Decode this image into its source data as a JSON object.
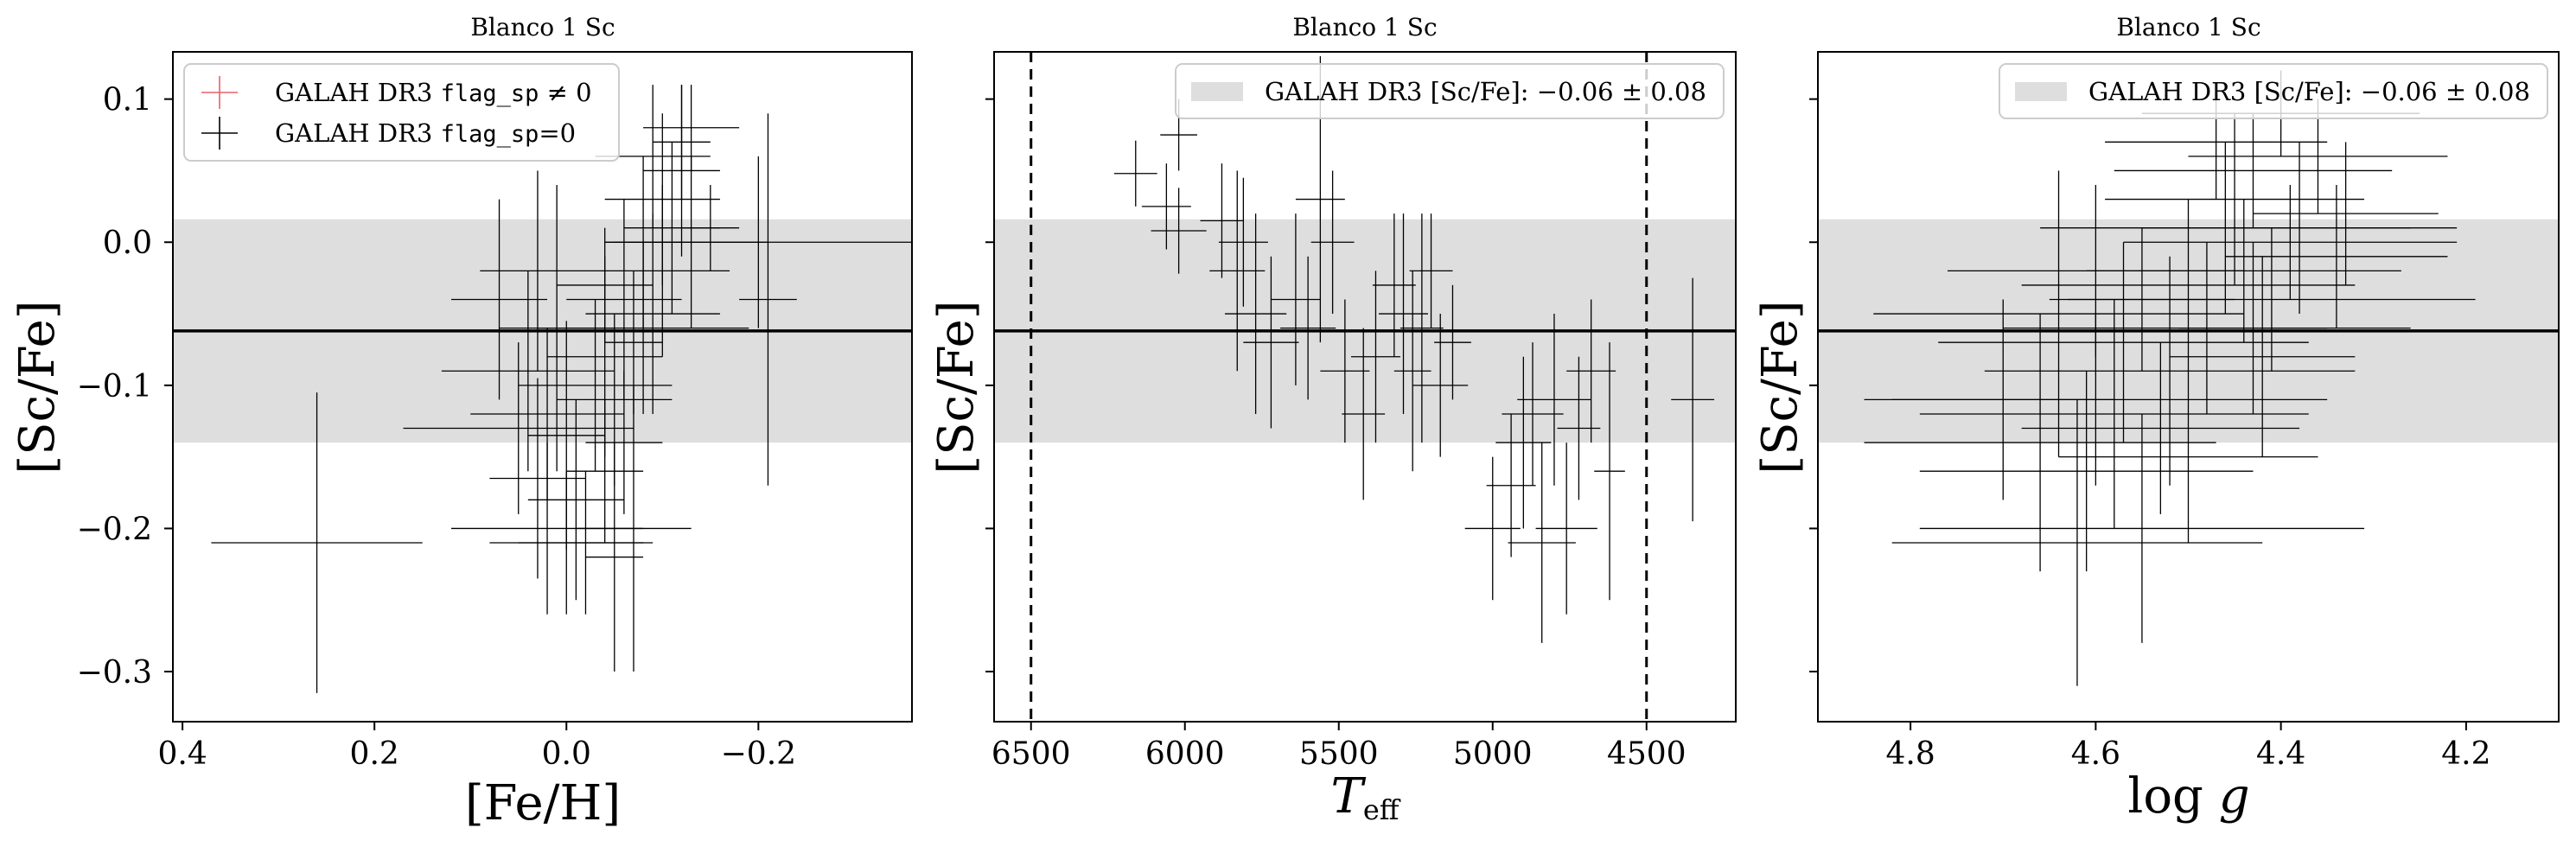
{
  "colors": {
    "band": "#dedede",
    "errorbar": "#000000",
    "flagged": "#e8606a",
    "axes": "#000000"
  },
  "figure": {
    "legend1": {
      "flagged_prefix": "GALAH DR3 ",
      "flagged_code": "flag_sp",
      "flagged_suffix": " ≠ 0",
      "clean_prefix": "GALAH DR3 ",
      "clean_code": "flag_sp",
      "clean_suffix": "=0"
    },
    "band_legend": "GALAH DR3 [Sc/Fe]:  −0.06 ± 0.08"
  },
  "chart_data": [
    {
      "type": "scatter",
      "title": "Blanco 1 Sc",
      "xlabel": "[Fe/H]",
      "ylabel": "[Sc/Fe]",
      "xlim": [
        0.41,
        -0.36
      ],
      "ylim": [
        -0.335,
        0.133
      ],
      "xticks": [
        0.4,
        0.2,
        0.0,
        -0.2
      ],
      "xtick_labels": [
        "0.4",
        "0.2",
        "0.0",
        "−0.2"
      ],
      "yticks": [
        0.1,
        0.0,
        -0.1,
        -0.2,
        -0.3
      ],
      "ytick_labels": [
        "0.1",
        "0.0",
        "−0.1",
        "−0.2",
        "−0.3"
      ],
      "reference": {
        "mean": -0.062,
        "sigma": 0.078
      },
      "legend": "upper left",
      "points": [
        {
          "x": 0.26,
          "y": -0.21,
          "xerr": 0.11,
          "yerr": 0.105
        },
        {
          "x": 0.07,
          "y": -0.04,
          "xerr": 0.05,
          "yerr": 0.07
        },
        {
          "x": 0.03,
          "y": -0.02,
          "xerr": 0.06,
          "yerr": 0.07
        },
        {
          "x": 0.04,
          "y": -0.09,
          "xerr": 0.09,
          "yerr": 0.07
        },
        {
          "x": 0.02,
          "y": -0.12,
          "xerr": 0.08,
          "yerr": 0.06
        },
        {
          "x": 0.05,
          "y": -0.13,
          "xerr": 0.12,
          "yerr": 0.06
        },
        {
          "x": 0.03,
          "y": -0.165,
          "xerr": 0.05,
          "yerr": 0.07
        },
        {
          "x": 0.02,
          "y": -0.2,
          "xerr": 0.1,
          "yerr": 0.06
        },
        {
          "x": 0.0,
          "y": -0.21,
          "xerr": 0.08,
          "yerr": 0.05
        },
        {
          "x": 0.0,
          "y": -0.135,
          "xerr": 0.04,
          "yerr": 0.08
        },
        {
          "x": -0.01,
          "y": -0.18,
          "xerr": 0.05,
          "yerr": 0.07
        },
        {
          "x": -0.02,
          "y": -0.21,
          "xerr": 0.07,
          "yerr": 0.05
        },
        {
          "x": -0.03,
          "y": -0.1,
          "xerr": 0.08,
          "yerr": 0.06
        },
        {
          "x": -0.04,
          "y": -0.16,
          "xerr": 0.04,
          "yerr": 0.05
        },
        {
          "x": -0.04,
          "y": -0.08,
          "xerr": 0.06,
          "yerr": 0.07
        },
        {
          "x": -0.05,
          "y": -0.22,
          "xerr": 0.03,
          "yerr": 0.08
        },
        {
          "x": -0.05,
          "y": -0.11,
          "xerr": 0.06,
          "yerr": 0.06
        },
        {
          "x": -0.06,
          "y": -0.04,
          "xerr": 0.06,
          "yerr": 0.07
        },
        {
          "x": -0.07,
          "y": -0.2,
          "xerr": 0.06,
          "yerr": 0.1
        },
        {
          "x": -0.07,
          "y": -0.07,
          "xerr": 0.03,
          "yerr": 0.05
        },
        {
          "x": -0.08,
          "y": -0.06,
          "xerr": 0.11,
          "yerr": 0.06
        },
        {
          "x": -0.08,
          "y": 0.0,
          "xerr": 0.04,
          "yerr": 0.06
        },
        {
          "x": -0.09,
          "y": -0.05,
          "xerr": 0.07,
          "yerr": 0.07
        },
        {
          "x": -0.09,
          "y": 0.06,
          "xerr": 0.06,
          "yerr": 0.05
        },
        {
          "x": -0.1,
          "y": -0.02,
          "xerr": 0.07,
          "yerr": 0.06
        },
        {
          "x": -0.1,
          "y": 0.03,
          "xerr": 0.06,
          "yerr": 0.06
        },
        {
          "x": -0.11,
          "y": 0.01,
          "xerr": 0.05,
          "yerr": 0.06
        },
        {
          "x": -0.12,
          "y": 0.05,
          "xerr": 0.04,
          "yerr": 0.06
        },
        {
          "x": -0.13,
          "y": 0.08,
          "xerr": 0.05,
          "yerr": 0.03
        },
        {
          "x": -0.13,
          "y": 0.0,
          "xerr": 0.08,
          "yerr": 0.06
        },
        {
          "x": -0.15,
          "y": 0.01,
          "xerr": 0.03,
          "yerr": 0.03
        },
        {
          "x": -0.21,
          "y": -0.04,
          "xerr": 0.03,
          "yerr": 0.13
        },
        {
          "x": -0.2,
          "y": 0.0,
          "xerr": 0.16,
          "yerr": 0.06
        },
        {
          "x": -0.12,
          "y": 0.07,
          "xerr": 0.03,
          "yerr": 0.04
        },
        {
          "x": -0.06,
          "y": -0.14,
          "xerr": 0.04,
          "yerr": 0.05
        },
        {
          "x": 0.01,
          "y": -0.06,
          "xerr": 0.06,
          "yerr": 0.1
        },
        {
          "x": -0.04,
          "y": -0.03,
          "xerr": 0.05,
          "yerr": 0.04
        }
      ]
    },
    {
      "type": "scatter",
      "title": "Blanco 1 Sc",
      "xlabel": "T_eff",
      "ylabel": "[Sc/Fe]",
      "xlim": [
        6620,
        4210
      ],
      "ylim": [
        -0.335,
        0.133
      ],
      "xticks": [
        6500,
        6000,
        5500,
        5000,
        4500
      ],
      "xtick_labels": [
        "6500",
        "6000",
        "5500",
        "5000",
        "4500"
      ],
      "yticks": [
        0.1,
        0.0,
        -0.1,
        -0.2,
        -0.3
      ],
      "vlines": [
        6500,
        4500
      ],
      "reference": {
        "mean": -0.062,
        "sigma": 0.078
      },
      "legend": "upper right",
      "points": [
        {
          "x": 6160,
          "y": 0.048,
          "xerr": 70,
          "yerr": 0.023
        },
        {
          "x": 6020,
          "y": 0.075,
          "xerr": 60,
          "yerr": 0.025
        },
        {
          "x": 6060,
          "y": 0.025,
          "xerr": 80,
          "yerr": 0.03
        },
        {
          "x": 6020,
          "y": 0.008,
          "xerr": 90,
          "yerr": 0.03
        },
        {
          "x": 5880,
          "y": 0.015,
          "xerr": 70,
          "yerr": 0.04
        },
        {
          "x": 5810,
          "y": 0.0,
          "xerr": 80,
          "yerr": 0.045
        },
        {
          "x": 5830,
          "y": -0.02,
          "xerr": 90,
          "yerr": 0.07
        },
        {
          "x": 5770,
          "y": -0.05,
          "xerr": 100,
          "yerr": 0.07
        },
        {
          "x": 5720,
          "y": -0.07,
          "xerr": 90,
          "yerr": 0.06
        },
        {
          "x": 5640,
          "y": -0.04,
          "xerr": 80,
          "yerr": 0.06
        },
        {
          "x": 5600,
          "y": -0.06,
          "xerr": 90,
          "yerr": 0.05
        },
        {
          "x": 5560,
          "y": 0.03,
          "xerr": 80,
          "yerr": 0.1
        },
        {
          "x": 5520,
          "y": 0.0,
          "xerr": 70,
          "yerr": 0.05
        },
        {
          "x": 5480,
          "y": -0.09,
          "xerr": 80,
          "yerr": 0.05
        },
        {
          "x": 5420,
          "y": -0.12,
          "xerr": 70,
          "yerr": 0.06
        },
        {
          "x": 5380,
          "y": -0.08,
          "xerr": 80,
          "yerr": 0.06
        },
        {
          "x": 5320,
          "y": -0.03,
          "xerr": 70,
          "yerr": 0.05
        },
        {
          "x": 5290,
          "y": -0.05,
          "xerr": 80,
          "yerr": 0.07
        },
        {
          "x": 5260,
          "y": -0.09,
          "xerr": 60,
          "yerr": 0.07
        },
        {
          "x": 5230,
          "y": -0.06,
          "xerr": 70,
          "yerr": 0.08
        },
        {
          "x": 5200,
          "y": -0.02,
          "xerr": 70,
          "yerr": 0.04
        },
        {
          "x": 5170,
          "y": -0.1,
          "xerr": 90,
          "yerr": 0.05
        },
        {
          "x": 5130,
          "y": -0.07,
          "xerr": 60,
          "yerr": 0.04
        },
        {
          "x": 5000,
          "y": -0.2,
          "xerr": 90,
          "yerr": 0.05
        },
        {
          "x": 4940,
          "y": -0.17,
          "xerr": 80,
          "yerr": 0.05
        },
        {
          "x": 4900,
          "y": -0.14,
          "xerr": 90,
          "yerr": 0.06
        },
        {
          "x": 4870,
          "y": -0.12,
          "xerr": 100,
          "yerr": 0.05
        },
        {
          "x": 4840,
          "y": -0.21,
          "xerr": 110,
          "yerr": 0.07
        },
        {
          "x": 4800,
          "y": -0.11,
          "xerr": 120,
          "yerr": 0.06
        },
        {
          "x": 4760,
          "y": -0.2,
          "xerr": 100,
          "yerr": 0.06
        },
        {
          "x": 4720,
          "y": -0.13,
          "xerr": 70,
          "yerr": 0.05
        },
        {
          "x": 4680,
          "y": -0.09,
          "xerr": 80,
          "yerr": 0.05
        },
        {
          "x": 4620,
          "y": -0.16,
          "xerr": 50,
          "yerr": 0.09
        },
        {
          "x": 4350,
          "y": -0.11,
          "xerr": 70,
          "yerr": 0.085
        }
      ]
    },
    {
      "type": "scatter",
      "title": "Blanco 1 Sc",
      "xlabel": "log g",
      "ylabel": "[Sc/Fe]",
      "xlim": [
        4.9,
        4.1
      ],
      "ylim": [
        -0.335,
        0.133
      ],
      "xticks": [
        4.8,
        4.6,
        4.4,
        4.2
      ],
      "xtick_labels": [
        "4.8",
        "4.6",
        "4.4",
        "4.2"
      ],
      "yticks": [
        0.1,
        0.0,
        -0.1,
        -0.2,
        -0.3
      ],
      "reference": {
        "mean": -0.062,
        "sigma": 0.078
      },
      "legend": "upper right",
      "points": [
        {
          "x": 4.6,
          "y": -0.11,
          "xerr": 0.25,
          "yerr": 0.06
        },
        {
          "x": 4.62,
          "y": -0.21,
          "xerr": 0.2,
          "yerr": 0.1
        },
        {
          "x": 4.66,
          "y": -0.14,
          "xerr": 0.19,
          "yerr": 0.09
        },
        {
          "x": 4.58,
          "y": -0.12,
          "xerr": 0.21,
          "yerr": 0.08
        },
        {
          "x": 4.61,
          "y": -0.16,
          "xerr": 0.18,
          "yerr": 0.07
        },
        {
          "x": 4.55,
          "y": -0.2,
          "xerr": 0.24,
          "yerr": 0.08
        },
        {
          "x": 4.64,
          "y": -0.05,
          "xerr": 0.2,
          "yerr": 0.1
        },
        {
          "x": 4.57,
          "y": -0.07,
          "xerr": 0.2,
          "yerr": 0.07
        },
        {
          "x": 4.52,
          "y": -0.09,
          "xerr": 0.2,
          "yerr": 0.08
        },
        {
          "x": 4.5,
          "y": -0.03,
          "xerr": 0.18,
          "yerr": 0.06
        },
        {
          "x": 4.48,
          "y": -0.06,
          "xerr": 0.22,
          "yerr": 0.06
        },
        {
          "x": 4.46,
          "y": 0.01,
          "xerr": 0.2,
          "yerr": 0.06
        },
        {
          "x": 4.44,
          "y": -0.02,
          "xerr": 0.17,
          "yerr": 0.05
        },
        {
          "x": 4.43,
          "y": 0.05,
          "xerr": 0.15,
          "yerr": 0.04
        },
        {
          "x": 4.41,
          "y": -0.04,
          "xerr": 0.22,
          "yerr": 0.05
        },
        {
          "x": 4.4,
          "y": 0.09,
          "xerr": 0.15,
          "yerr": 0.03
        },
        {
          "x": 4.38,
          "y": 0.01,
          "xerr": 0.17,
          "yerr": 0.06
        },
        {
          "x": 4.36,
          "y": 0.06,
          "xerr": 0.14,
          "yerr": 0.04
        },
        {
          "x": 4.34,
          "y": -0.01,
          "xerr": 0.12,
          "yerr": 0.05
        },
        {
          "x": 4.42,
          "y": -0.08,
          "xerr": 0.1,
          "yerr": 0.07
        },
        {
          "x": 4.47,
          "y": 0.07,
          "xerr": 0.12,
          "yerr": 0.04
        },
        {
          "x": 4.55,
          "y": -0.04,
          "xerr": 0.1,
          "yerr": 0.05
        },
        {
          "x": 4.53,
          "y": -0.13,
          "xerr": 0.15,
          "yerr": 0.06
        },
        {
          "x": 4.7,
          "y": -0.11,
          "xerr": 0.12,
          "yerr": 0.07
        },
        {
          "x": 4.45,
          "y": 0.03,
          "xerr": 0.14,
          "yerr": 0.06
        },
        {
          "x": 4.39,
          "y": 0.0,
          "xerr": 0.18,
          "yerr": 0.04
        },
        {
          "x": 4.6,
          "y": -0.02,
          "xerr": 0.16,
          "yerr": 0.06
        },
        {
          "x": 4.5,
          "y": -0.15,
          "xerr": 0.14,
          "yerr": 0.06
        },
        {
          "x": 4.33,
          "y": 0.02,
          "xerr": 0.1,
          "yerr": 0.05
        },
        {
          "x": 4.43,
          "y": -0.06,
          "xerr": 0.08,
          "yerr": 0.06
        }
      ]
    }
  ]
}
